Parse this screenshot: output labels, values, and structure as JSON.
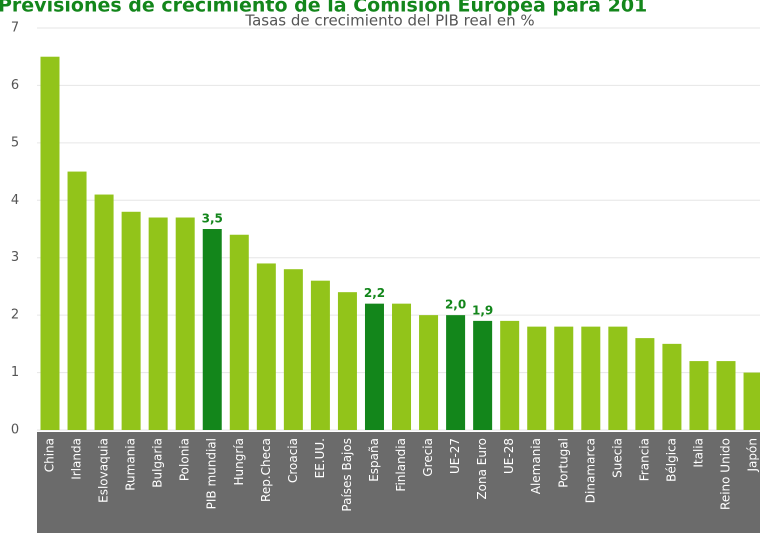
{
  "chart_data": {
    "type": "bar",
    "title": "Previsiones de crecimiento de la Comisión Europea para 201",
    "subtitle": "Tasas de crecimiento del PIB real en %",
    "categories": [
      "China",
      "Irlanda",
      "Eslovaquia",
      "Rumania",
      "Bulgaria",
      "Polonia",
      "PIB mundial",
      "Hungría",
      "Rep.Checa",
      "Croacia",
      "EE.UU.",
      "Países Bajos",
      "España",
      "Finlandia",
      "Grecia",
      "UE-27",
      "Zona Euro",
      "UE-28",
      "Alemania",
      "Portugal",
      "Dinamarca",
      "Suecia",
      "Francia",
      "Bélgica",
      "Italia",
      "Reino Unido",
      "Japón"
    ],
    "values": [
      6.5,
      4.5,
      4.1,
      3.8,
      3.7,
      3.7,
      3.5,
      3.4,
      2.9,
      2.8,
      2.6,
      2.4,
      2.2,
      2.2,
      2.0,
      2.0,
      1.9,
      1.9,
      1.8,
      1.8,
      1.8,
      1.8,
      1.6,
      1.5,
      1.2,
      1.2,
      1.0
    ],
    "value_labels": [
      null,
      null,
      null,
      null,
      null,
      null,
      "3,5",
      null,
      null,
      null,
      null,
      null,
      "2,2",
      null,
      null,
      "2,0",
      "1,9",
      null,
      null,
      null,
      null,
      null,
      null,
      null,
      null,
      null,
      null
    ],
    "colors": [
      "#92c41a",
      "#92c41a",
      "#92c41a",
      "#92c41a",
      "#92c41a",
      "#92c41a",
      "#13861b",
      "#92c41a",
      "#92c41a",
      "#92c41a",
      "#92c41a",
      "#92c41a",
      "#13861b",
      "#92c41a",
      "#92c41a",
      "#13861b",
      "#13861b",
      "#92c41a",
      "#92c41a",
      "#92c41a",
      "#92c41a",
      "#92c41a",
      "#92c41a",
      "#92c41a",
      "#92c41a",
      "#92c41a",
      "#92c41a"
    ],
    "ylim": [
      0,
      7
    ],
    "yticks": [
      0,
      1,
      2,
      3,
      4,
      5,
      6,
      7
    ],
    "grid": true
  }
}
